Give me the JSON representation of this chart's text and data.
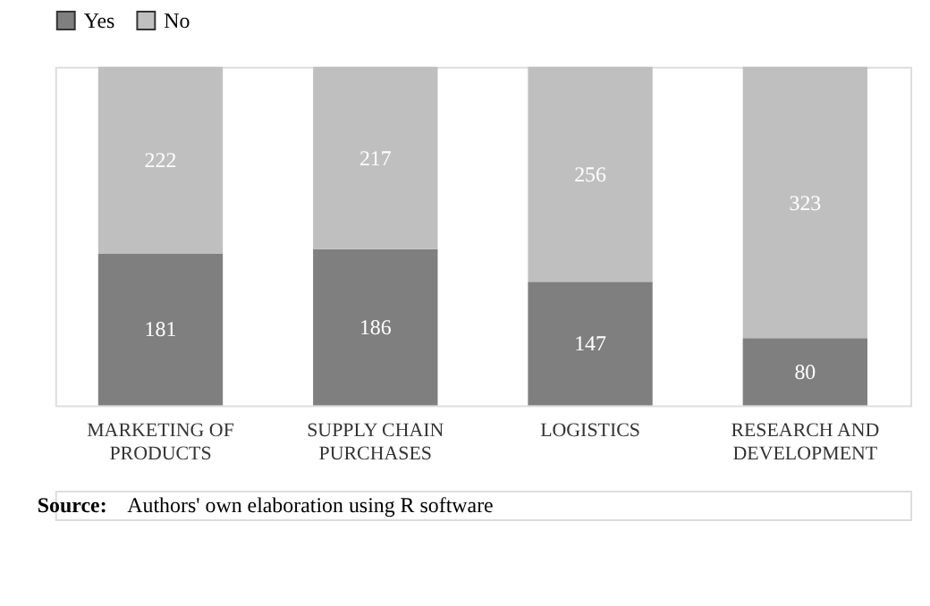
{
  "chart_data": {
    "type": "bar",
    "stacked": true,
    "data_labels": true,
    "legend": "top",
    "grid": false,
    "tick_labels": "x",
    "categories": [
      "MARKETING OF PRODUCTS",
      "SUPPLY CHAIN PURCHASES",
      "LOGISTICS",
      "RESEARCH AND DEVELOPMENT"
    ],
    "series": [
      {
        "name": "Yes",
        "color": "#7f7f7f",
        "values": [
          181,
          186,
          147,
          80
        ]
      },
      {
        "name": "No",
        "color": "#bfbfbf",
        "values": [
          222,
          217,
          256,
          323
        ]
      }
    ],
    "annotations": [
      "Source: Authors' own elaboration using R software"
    ]
  }
}
